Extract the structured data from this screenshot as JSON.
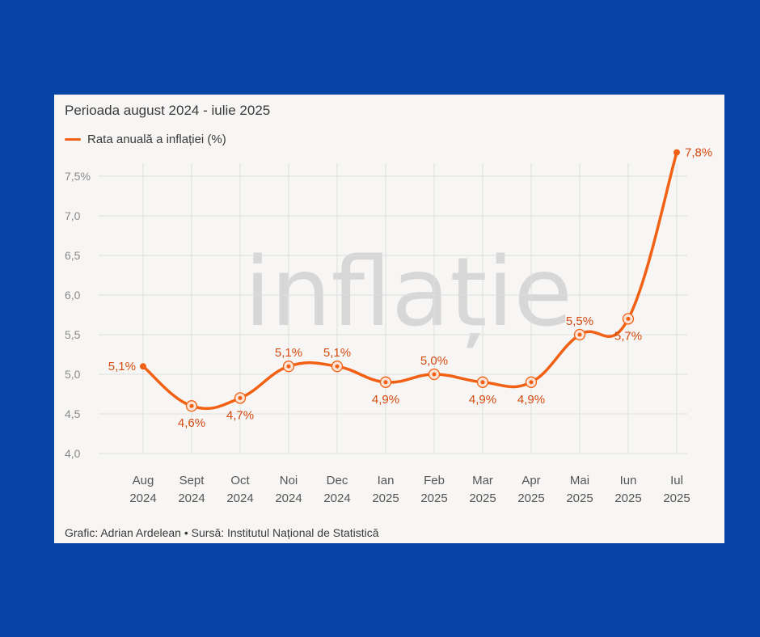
{
  "card": {
    "subtitle": "Perioada august 2024 - iulie 2025",
    "legend_label": "Rata anuală a inflației (%)",
    "watermark": "inflație",
    "footer": "Grafic: Adrian Ardelean • Sursă: Institutul Național de Statistică"
  },
  "colors": {
    "page_background": "#0645a6",
    "card_background": "#f8f6f4",
    "series": "#f16013",
    "data_label": "#d44a10",
    "gridline": "#dddddd",
    "tick_text": "#8a8a8a",
    "watermark": "#d7d7d7"
  },
  "chart_data": {
    "type": "line",
    "title": "",
    "subtitle": "Perioada august 2024 - iulie 2025",
    "xlabel": "",
    "ylabel": "",
    "categories": [
      [
        "Aug",
        "2024"
      ],
      [
        "Sept",
        "2024"
      ],
      [
        "Oct",
        "2024"
      ],
      [
        "Noi",
        "2024"
      ],
      [
        "Dec",
        "2024"
      ],
      [
        "Ian",
        "2025"
      ],
      [
        "Feb",
        "2025"
      ],
      [
        "Mar",
        "2025"
      ],
      [
        "Apr",
        "2025"
      ],
      [
        "Mai",
        "2025"
      ],
      [
        "Iun",
        "2025"
      ],
      [
        "Iul",
        "2025"
      ]
    ],
    "series": [
      {
        "name": "Rata anuală a inflației (%)",
        "values": [
          5.1,
          4.6,
          4.7,
          5.1,
          5.1,
          4.9,
          5.0,
          4.9,
          4.9,
          5.5,
          5.7,
          7.8
        ],
        "labels": [
          "5,1%",
          "4,6%",
          "4,7%",
          "5,1%",
          "5,1%",
          "4,9%",
          "5,0%",
          "4,9%",
          "4,9%",
          "5,5%",
          "5,7%",
          "7,8%"
        ],
        "label_positions": [
          "left",
          "below",
          "below",
          "above",
          "above",
          "below",
          "above",
          "below",
          "below",
          "above",
          "below",
          "right"
        ],
        "markers": [
          false,
          true,
          true,
          true,
          true,
          true,
          true,
          true,
          true,
          true,
          true,
          false
        ]
      }
    ],
    "yticks": [
      4.0,
      4.5,
      5.0,
      5.5,
      6.0,
      6.5,
      7.0,
      7.5
    ],
    "ytick_labels": [
      "4,0",
      "4,5",
      "5,0",
      "5,5",
      "6,0",
      "6,5",
      "7,0",
      "7,5%"
    ],
    "ylim": [
      4.0,
      7.8
    ],
    "grid": true,
    "legend": "top-left"
  }
}
